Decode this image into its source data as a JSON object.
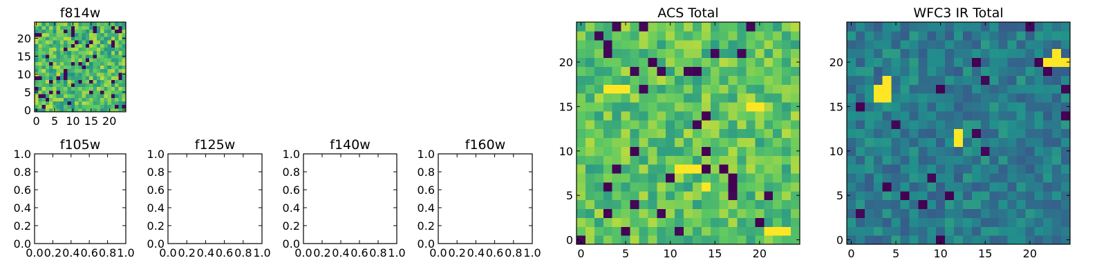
{
  "chart_data": [
    {
      "type": "heatmap",
      "title": "f814w",
      "grid_size": 25,
      "xlim": [
        -0.5,
        24.5
      ],
      "ylim": [
        -0.5,
        24.5
      ],
      "xticks": [
        0,
        5,
        10,
        15,
        20
      ],
      "yticks": [
        0,
        5,
        10,
        15,
        20
      ],
      "colormap": [
        "#440154",
        "#3b528b",
        "#21918c",
        "#5ec962",
        "#fde725"
      ],
      "value_range": [
        0,
        1
      ],
      "seed": 814,
      "value_mean": 0.7,
      "value_spread": 0.2,
      "dark_fraction": 0.06
    },
    {
      "type": "empty",
      "title": "f105w",
      "xlim": [
        0,
        1
      ],
      "ylim": [
        0,
        1
      ],
      "xticks": [
        "0.0",
        "0.2",
        "0.4",
        "0.6",
        "0.8",
        "1.0"
      ],
      "yticks": [
        "0.0",
        "0.2",
        "0.4",
        "0.6",
        "0.8",
        "1.0"
      ]
    },
    {
      "type": "empty",
      "title": "f125w",
      "xlim": [
        0,
        1
      ],
      "ylim": [
        0,
        1
      ],
      "xticks": [
        "0.0",
        "0.2",
        "0.4",
        "0.6",
        "0.8",
        "1.0"
      ],
      "yticks": [
        "0.0",
        "0.2",
        "0.4",
        "0.6",
        "0.8",
        "1.0"
      ]
    },
    {
      "type": "empty",
      "title": "f140w",
      "xlim": [
        0,
        1
      ],
      "ylim": [
        0,
        1
      ],
      "xticks": [
        "0.0",
        "0.2",
        "0.4",
        "0.6",
        "0.8",
        "1.0"
      ],
      "yticks": [
        "0.0",
        "0.2",
        "0.4",
        "0.6",
        "0.8",
        "1.0"
      ]
    },
    {
      "type": "empty",
      "title": "f160w",
      "xlim": [
        0,
        1
      ],
      "ylim": [
        0,
        1
      ],
      "xticks": [
        "0.0",
        "0.2",
        "0.4",
        "0.6",
        "0.8",
        "1.0"
      ],
      "yticks": [
        "0.0",
        "0.2",
        "0.4",
        "0.6",
        "0.8",
        "1.0"
      ]
    },
    {
      "type": "heatmap",
      "title": "ACS Total",
      "grid_size": 25,
      "xlim": [
        -0.5,
        24.5
      ],
      "ylim": [
        -0.5,
        24.5
      ],
      "xticks": [
        0,
        5,
        10,
        15,
        20
      ],
      "yticks": [
        0,
        5,
        10,
        15,
        20
      ],
      "colormap": [
        "#440154",
        "#3b528b",
        "#21918c",
        "#5ec962",
        "#fde725"
      ],
      "value_range": [
        0,
        1
      ],
      "seed": 2017,
      "value_mean": 0.72,
      "value_spread": 0.17,
      "dark_fraction": 0.03,
      "dark_cells": [
        [
          8,
          20
        ],
        [
          13,
          19
        ],
        [
          14,
          14
        ],
        [
          3,
          3
        ],
        [
          14,
          8
        ],
        [
          16,
          8
        ],
        [
          17,
          6
        ],
        [
          17,
          7
        ],
        [
          5,
          1
        ],
        [
          20,
          2
        ],
        [
          14,
          10
        ],
        [
          6,
          10
        ],
        [
          3,
          6
        ]
      ],
      "bright_cells": [
        [
          11,
          8
        ],
        [
          12,
          8
        ],
        [
          13,
          8
        ],
        [
          21,
          1
        ],
        [
          22,
          1
        ],
        [
          23,
          1
        ],
        [
          3,
          17
        ],
        [
          4,
          17
        ],
        [
          5,
          17
        ],
        [
          14,
          6
        ],
        [
          19,
          15
        ],
        [
          20,
          15
        ]
      ]
    },
    {
      "type": "heatmap",
      "title": "WFC3 IR Total",
      "grid_size": 25,
      "xlim": [
        -0.5,
        24.5
      ],
      "ylim": [
        -0.5,
        24.5
      ],
      "xticks": [
        0,
        5,
        10,
        15,
        20
      ],
      "yticks": [
        0,
        5,
        10,
        15,
        20
      ],
      "colormap": [
        "#440154",
        "#3b528b",
        "#21918c",
        "#5ec962",
        "#fde725"
      ],
      "value_range": [
        0,
        1
      ],
      "seed": 3160,
      "value_mean": 0.42,
      "value_spread": 0.13,
      "dark_fraction": 0.02,
      "dark_cells": [
        [
          10,
          0
        ],
        [
          8,
          4
        ],
        [
          4,
          6
        ],
        [
          6,
          5
        ],
        [
          11,
          5
        ],
        [
          10,
          17
        ],
        [
          14,
          20
        ],
        [
          21,
          20
        ],
        [
          24,
          14
        ],
        [
          22,
          19
        ],
        [
          1,
          15
        ]
      ],
      "bright_cells": [
        [
          3,
          16
        ],
        [
          4,
          16
        ],
        [
          3,
          17
        ],
        [
          4,
          17
        ],
        [
          4,
          18
        ],
        [
          22,
          20
        ],
        [
          23,
          20
        ],
        [
          24,
          20
        ],
        [
          23,
          21
        ],
        [
          12,
          11
        ],
        [
          12,
          12
        ]
      ]
    }
  ]
}
